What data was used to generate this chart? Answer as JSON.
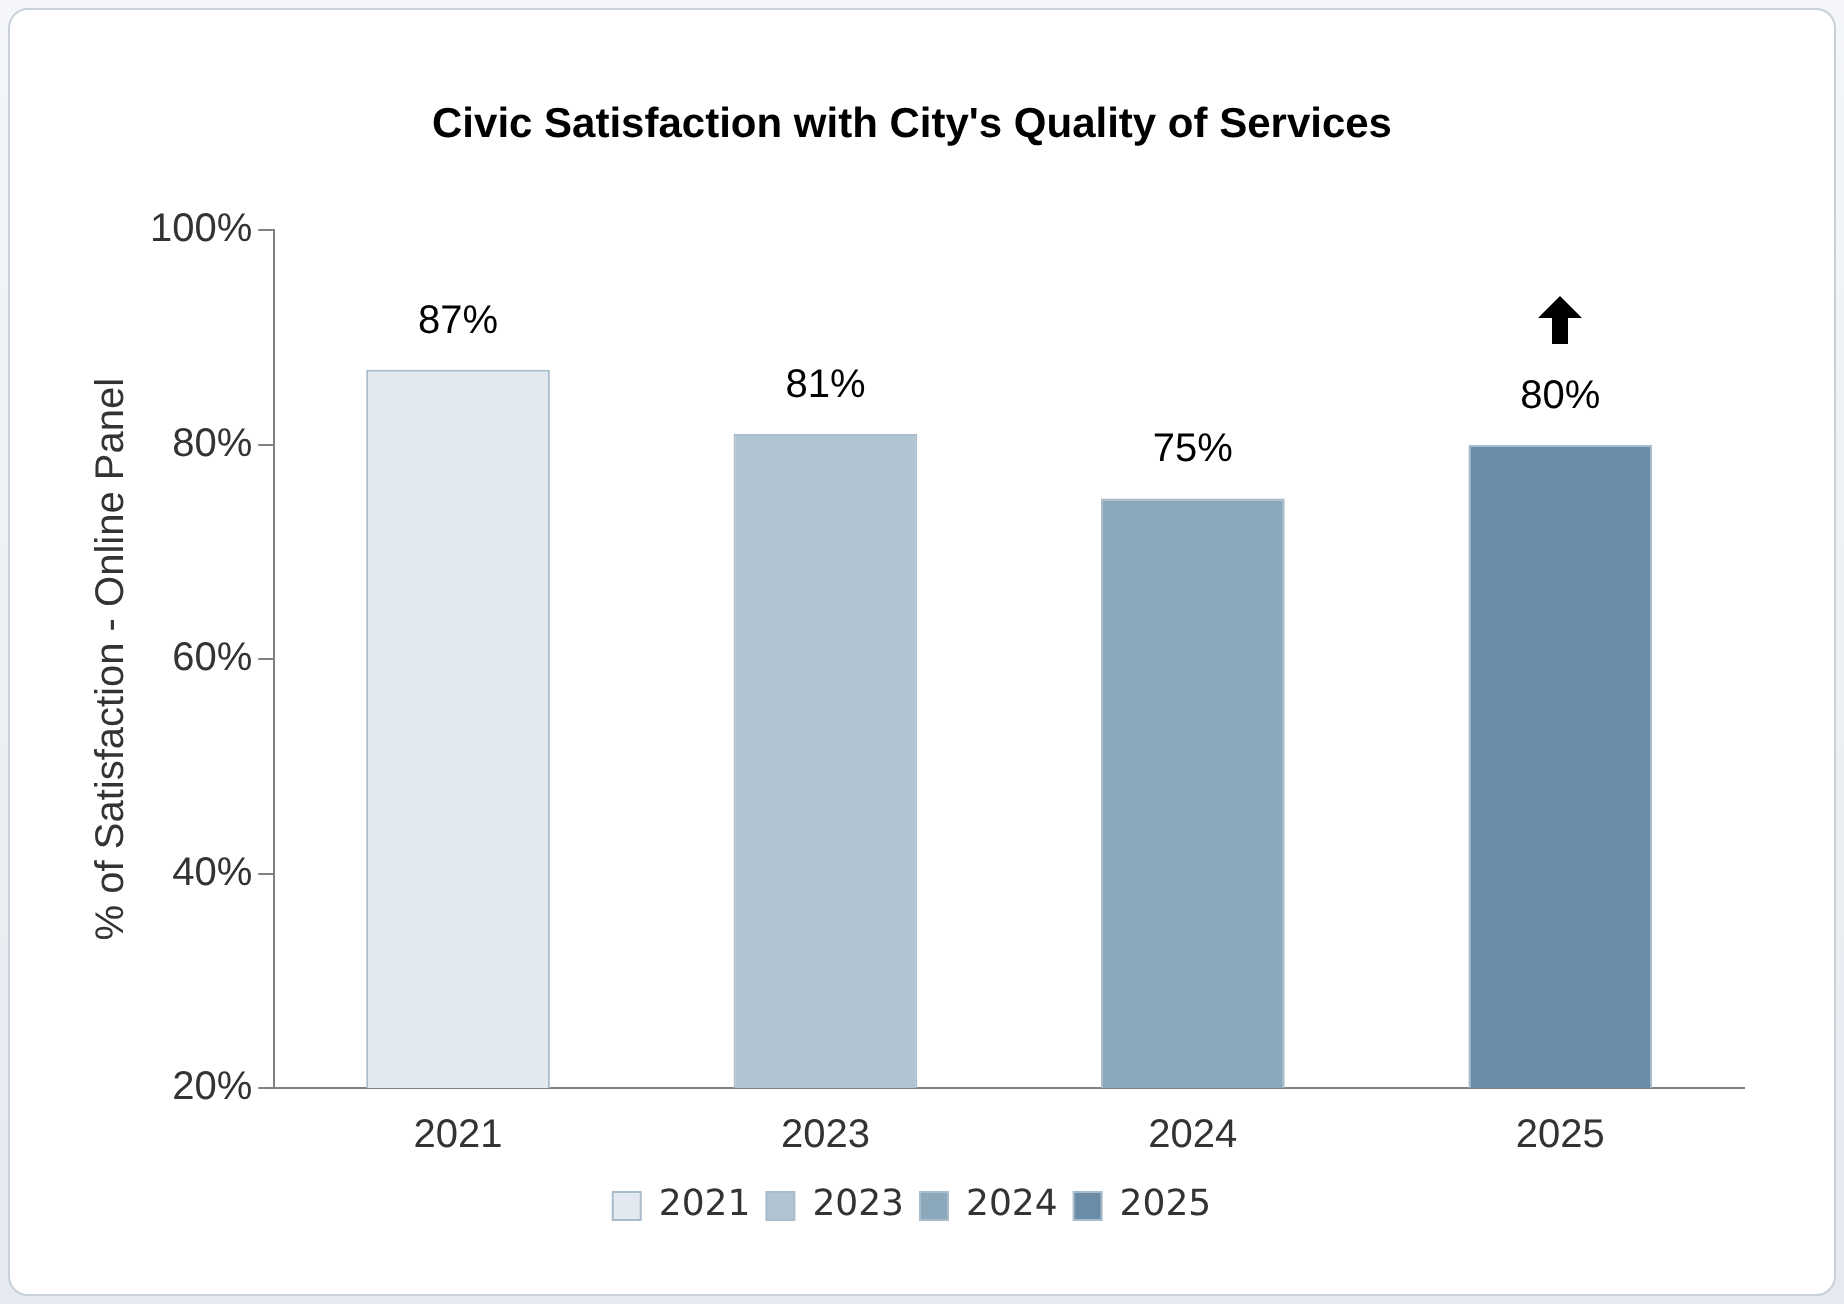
{
  "chart_data": {
    "type": "bar",
    "title": "Civic Satisfaction with City's Quality of Services",
    "ylabel": "% of Satisfaction - Online Panel",
    "categories": [
      "2021",
      "2023",
      "2024",
      "2025"
    ],
    "series": [
      {
        "name": "2021",
        "color": "#e2e9f0",
        "values": [
          87,
          null,
          null,
          null
        ]
      },
      {
        "name": "2023",
        "color": "#b0c4d2",
        "values": [
          null,
          81,
          null,
          null
        ]
      },
      {
        "name": "2024",
        "color": "#8ba9ba",
        "values": [
          null,
          null,
          75,
          null
        ]
      },
      {
        "name": "2025",
        "color": "#6a8ca6",
        "values": [
          null,
          null,
          null,
          80
        ]
      }
    ],
    "ylim": [
      20,
      100
    ],
    "yticks": [
      {
        "value": 20,
        "label": "20%"
      },
      {
        "value": 40,
        "label": "40%"
      },
      {
        "value": 60,
        "label": "60%"
      },
      {
        "value": 80,
        "label": "80%"
      },
      {
        "value": 100,
        "label": "100%"
      }
    ],
    "value_labels": [
      "87%",
      "81%",
      "75%",
      "80%"
    ],
    "grid": false,
    "legend": "bottom"
  }
}
